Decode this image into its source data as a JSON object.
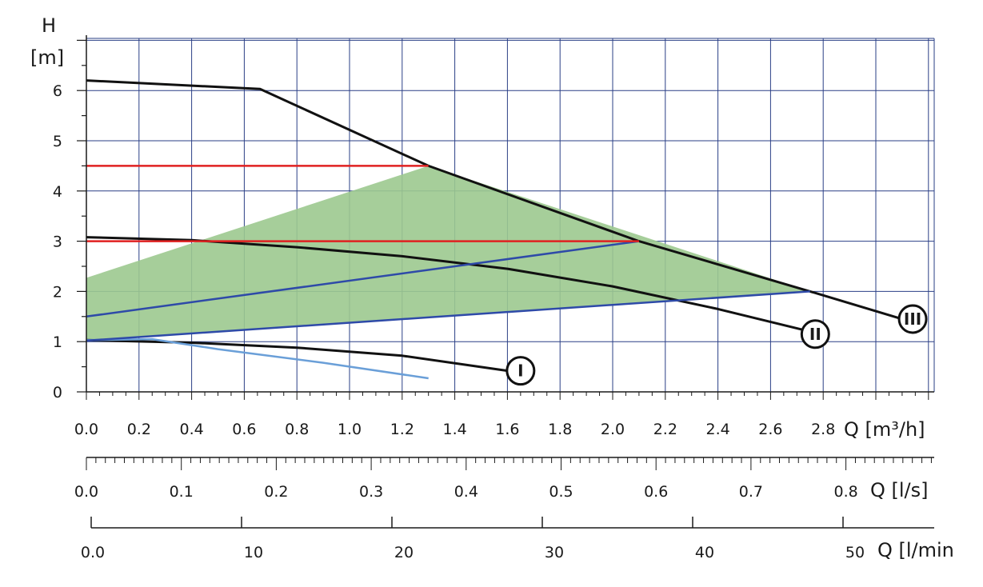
{
  "chart_data": {
    "type": "line",
    "title": "",
    "ylabel": "H",
    "yunit": "[m]",
    "xunit_flow": "Q [m³/h]",
    "xunit_ls": "Q [l/s]",
    "xunit_lmin": "Q [l/min",
    "xlim": [
      0.0,
      3.2
    ],
    "ylim": [
      0,
      7
    ],
    "grid": true,
    "y_ticks": [
      "0",
      "1",
      "2",
      "3",
      "4",
      "5",
      "6"
    ],
    "x_ticks_m3h": [
      "0.0",
      "0.2",
      "0.4",
      "0.6",
      "0.8",
      "1.0",
      "1.2",
      "1.4",
      "1.6",
      "1.8",
      "2.0",
      "2.2",
      "2.4",
      "2.6",
      "2.8"
    ],
    "x_ticks_ls": [
      "0.0",
      "0.1",
      "0.2",
      "0.3",
      "0.4",
      "0.5",
      "0.6",
      "0.7",
      "0.8"
    ],
    "x_ticks_lmin": [
      "0.0",
      "10",
      "20",
      "30",
      "40",
      "50"
    ],
    "series": [
      {
        "name": "III",
        "color": "#111111",
        "points": [
          [
            0.0,
            6.2
          ],
          [
            0.66,
            6.03
          ],
          [
            1.3,
            4.5
          ],
          [
            2.1,
            3.0
          ],
          [
            2.75,
            2.0
          ],
          [
            3.1,
            1.45
          ]
        ]
      },
      {
        "name": "II",
        "color": "#111111",
        "points": [
          [
            0.0,
            3.08
          ],
          [
            0.4,
            3.02
          ],
          [
            0.8,
            2.88
          ],
          [
            1.2,
            2.7
          ],
          [
            1.6,
            2.45
          ],
          [
            2.0,
            2.1
          ],
          [
            2.4,
            1.65
          ],
          [
            2.75,
            1.2
          ]
        ]
      },
      {
        "name": "I",
        "color": "#111111",
        "points": [
          [
            0.0,
            1.03
          ],
          [
            0.4,
            0.98
          ],
          [
            0.8,
            0.88
          ],
          [
            1.2,
            0.72
          ],
          [
            1.6,
            0.42
          ]
        ]
      },
      {
        "name": "light-blue curve",
        "color": "#6a9fd8",
        "points": [
          [
            0.0,
            1.03
          ],
          [
            0.25,
            1.05
          ],
          [
            0.5,
            0.85
          ],
          [
            0.9,
            0.58
          ],
          [
            1.3,
            0.27
          ]
        ]
      },
      {
        "name": "upper blue",
        "color": "#2e4aa8",
        "points": [
          [
            0.0,
            1.5
          ],
          [
            2.1,
            3.0
          ]
        ]
      },
      {
        "name": "lower blue",
        "color": "#2e4aa8",
        "points": [
          [
            0.0,
            1.02
          ],
          [
            2.75,
            2.0
          ]
        ]
      },
      {
        "name": "red 4.5",
        "color": "#e02020",
        "points": [
          [
            0.0,
            4.5
          ],
          [
            1.3,
            4.5
          ]
        ]
      },
      {
        "name": "red 3.0",
        "color": "#e02020",
        "points": [
          [
            0.0,
            3.0
          ],
          [
            2.1,
            3.0
          ]
        ]
      }
    ],
    "area": {
      "name": "operating range",
      "color": "#9cc98f",
      "points": [
        [
          0.0,
          2.27
        ],
        [
          1.3,
          4.5
        ],
        [
          2.75,
          2.0
        ],
        [
          0.0,
          1.02
        ]
      ]
    },
    "markers": [
      {
        "label": "I",
        "x": 1.65,
        "y": 0.42
      },
      {
        "label": "II",
        "x": 2.77,
        "y": 1.15
      },
      {
        "label": "III",
        "x": 3.14,
        "y": 1.45
      }
    ]
  }
}
